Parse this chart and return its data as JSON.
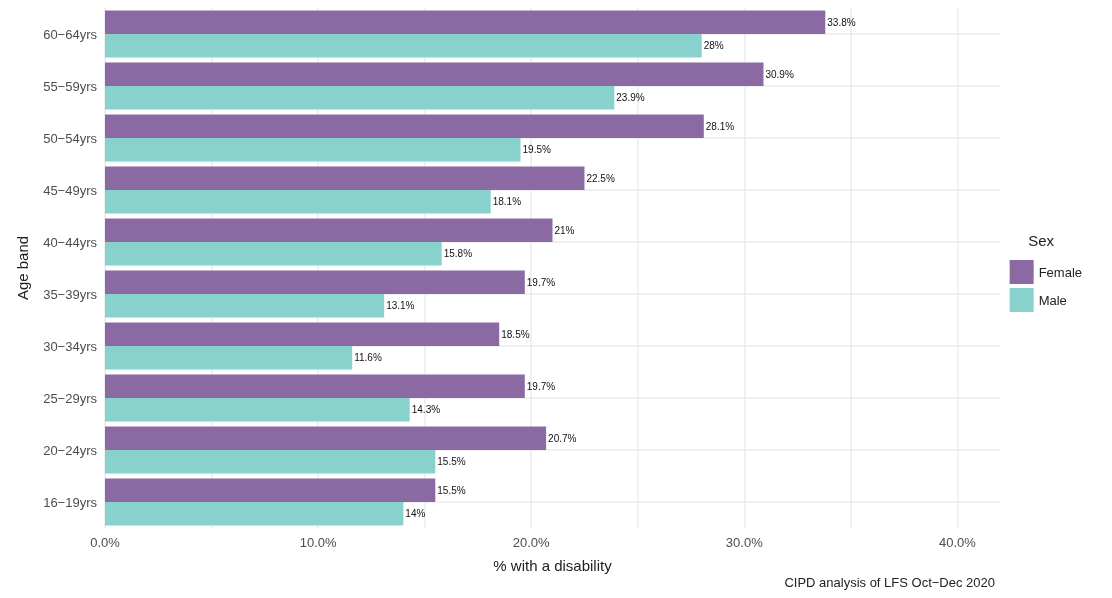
{
  "chart_data": {
    "type": "bar",
    "orientation": "horizontal",
    "xlabel": "% with a disability",
    "ylabel": "Age band",
    "legend_title": "Sex",
    "legend": "right",
    "categories": [
      "60−64yrs",
      "55−59yrs",
      "50−54yrs",
      "45−49yrs",
      "40−44yrs",
      "35−39yrs",
      "30−34yrs",
      "25−29yrs",
      "20−24yrs",
      "16−19yrs"
    ],
    "series": [
      {
        "name": "Female",
        "color": "#8b6aa3",
        "values": [
          33.8,
          30.9,
          28.1,
          22.5,
          21,
          19.7,
          18.5,
          19.7,
          20.7,
          15.5
        ],
        "value_labels": [
          "33.8%",
          "30.9%",
          "28.1%",
          "22.5%",
          "21%",
          "19.7%",
          "18.5%",
          "19.7%",
          "20.7%",
          "15.5%"
        ]
      },
      {
        "name": "Male",
        "color": "#88d1cc",
        "values": [
          28,
          23.9,
          19.5,
          18.1,
          15.8,
          13.1,
          11.6,
          14.3,
          15.5,
          14
        ],
        "value_labels": [
          "28%",
          "23.9%",
          "19.5%",
          "18.1%",
          "15.8%",
          "13.1%",
          "11.6%",
          "14.3%",
          "15.5%",
          "14%"
        ]
      }
    ],
    "xlim": [
      0,
      42
    ],
    "xticks": [
      {
        "value": 0,
        "label": "0.0%"
      },
      {
        "value": 5,
        "label": null
      },
      {
        "value": 10,
        "label": "10.0%"
      },
      {
        "value": 15,
        "label": null
      },
      {
        "value": 20,
        "label": "20.0%"
      },
      {
        "value": 25,
        "label": null
      },
      {
        "value": 30,
        "label": "30.0%"
      },
      {
        "value": 35,
        "label": null
      },
      {
        "value": 40,
        "label": "40.0%"
      }
    ],
    "grid": true,
    "annotations": [
      "CIPD analysis of LFS Oct−Dec 2020"
    ]
  }
}
